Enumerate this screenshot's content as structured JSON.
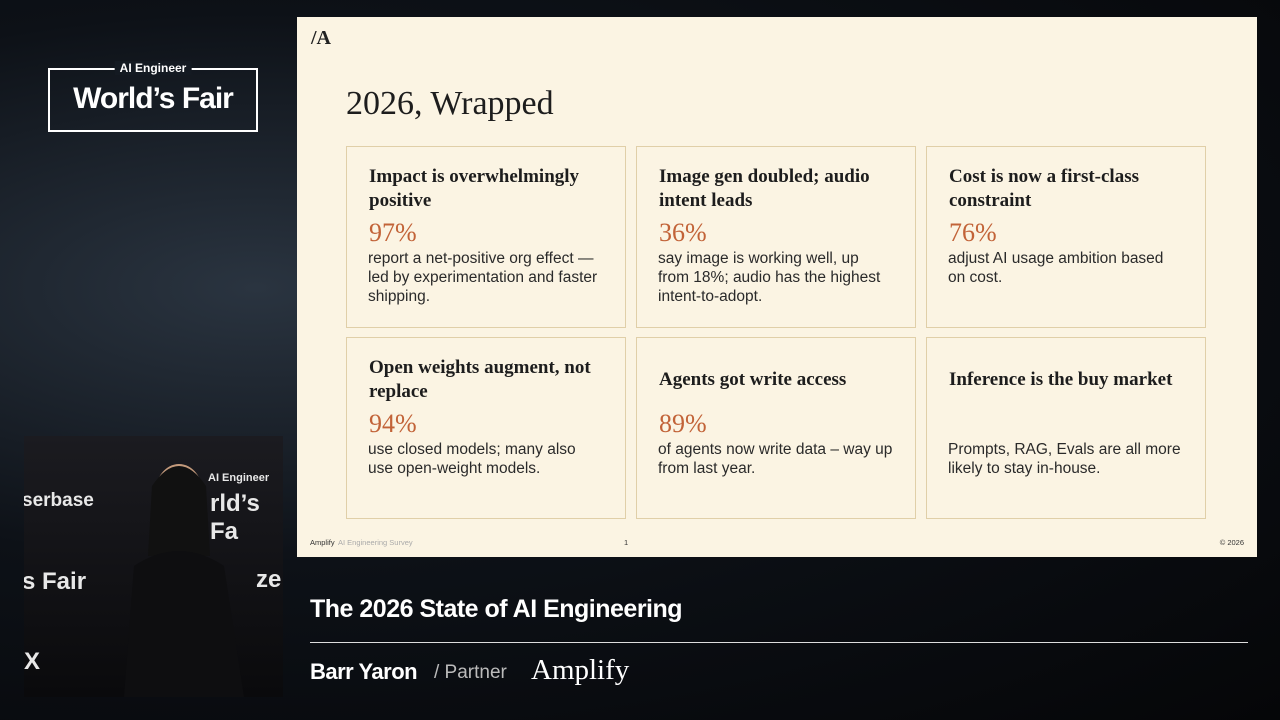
{
  "event_logo": {
    "top": "AI Engineer",
    "main": "World’s Fair"
  },
  "slide": {
    "title": "2026, Wrapped",
    "cards": [
      {
        "heading": "Impact is overwhelmingly positive",
        "stat": "97%",
        "body": "report a net-positive org effect — led by experimentation and faster shipping."
      },
      {
        "heading": "Image gen doubled; audio intent leads",
        "stat": "36%",
        "body": "say image is working well, up from 18%; audio has the highest intent-to-adopt."
      },
      {
        "heading": "Cost is now a first-class constraint",
        "stat": "76%",
        "body": "adjust AI usage ambition based on cost."
      },
      {
        "heading": "Open weights augment, not replace",
        "stat": "94%",
        "body": "use closed models; many also use open-weight models."
      },
      {
        "heading": "Agents got write access",
        "stat": "89%",
        "body": "of agents now write data – way up from last year."
      },
      {
        "heading": "Inference is the buy market",
        "body": "Prompts, RAG, Evals are all more likely to stay in-house."
      }
    ],
    "footer": {
      "brand": "Amplify",
      "survey": "AI Engineering Survey",
      "page": "1",
      "copyright": "© 2026"
    }
  },
  "speaker_video": {
    "backdrop_texts": [
      "serbase",
      "AI Engineer",
      "rld’s Fa",
      "s Fair",
      "ze",
      "X"
    ]
  },
  "lower_third": {
    "talk_title": "The 2026 State of AI Engineering",
    "speaker": "Barr Yaron",
    "role": "/ Partner",
    "company": "Amplify"
  }
}
